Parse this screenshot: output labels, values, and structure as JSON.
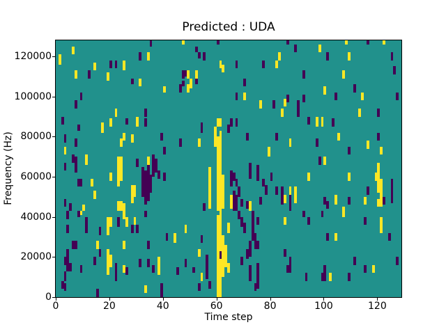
{
  "chart_data": {
    "type": "heatmap",
    "title": "Predicted : UDA",
    "xlabel": "Time step",
    "ylabel": "Frequency (Hz)",
    "x_range": [
      0,
      129
    ],
    "y_range_hz": [
      0,
      128000
    ],
    "x_ticks": [
      0,
      20,
      40,
      60,
      80,
      100,
      120
    ],
    "y_ticks": [
      0,
      20000,
      40000,
      60000,
      80000,
      100000,
      120000
    ],
    "grid": false,
    "legend": "none",
    "colormap": "viridis",
    "colors": {
      "mid_background": "#21918c",
      "low": "#440154",
      "high": "#fde725",
      "spine": "#000000",
      "figure_background": "#ffffff"
    },
    "cell_unit": {
      "time_step": 1,
      "freq_hz_per_bin": 1000
    },
    "cells_format": "[time_step, freq_bin_start, freq_bin_end, color] where color y=high(yellow), p=low(purple); background is mid teal",
    "cells": [
      [
        1,
        116,
        120,
        "y"
      ],
      [
        2,
        86,
        89,
        "p"
      ],
      [
        2,
        4,
        7,
        "p"
      ],
      [
        3,
        77,
        80,
        "p"
      ],
      [
        3,
        71,
        74,
        "y"
      ],
      [
        3,
        63,
        66,
        "p"
      ],
      [
        3,
        45,
        48,
        "p"
      ],
      [
        3,
        16,
        19,
        "p"
      ],
      [
        3,
        8,
        12,
        "p"
      ],
      [
        3,
        3,
        6,
        "p"
      ],
      [
        4,
        39,
        42,
        "p"
      ],
      [
        4,
        32,
        35,
        "p"
      ],
      [
        4,
        13,
        23,
        "p"
      ],
      [
        5,
        43,
        46,
        "p"
      ],
      [
        5,
        13,
        16,
        "p"
      ],
      [
        6,
        121,
        124,
        "y"
      ],
      [
        6,
        67,
        70,
        "p"
      ],
      [
        6,
        24,
        27,
        "p"
      ],
      [
        7,
        109,
        112,
        "y"
      ],
      [
        7,
        94,
        97,
        "p"
      ],
      [
        7,
        75,
        78,
        "p"
      ],
      [
        7,
        62,
        69,
        "p"
      ],
      [
        7,
        24,
        27,
        "p"
      ],
      [
        8,
        83,
        85,
        "p"
      ],
      [
        8,
        55,
        58,
        "p"
      ],
      [
        8,
        40,
        42,
        "p"
      ],
      [
        9,
        98,
        101,
        "p"
      ],
      [
        9,
        55,
        58,
        "p"
      ],
      [
        9,
        41,
        42,
        "y"
      ],
      [
        9,
        12,
        15,
        "p"
      ],
      [
        10,
        43,
        45,
        "y"
      ],
      [
        11,
        66,
        70,
        "y"
      ],
      [
        11,
        35,
        39,
        "p"
      ],
      [
        11,
        32,
        35,
        "p"
      ],
      [
        12,
        109,
        112,
        "p"
      ],
      [
        13,
        55,
        58,
        "y"
      ],
      [
        14,
        113,
        116,
        "y"
      ],
      [
        14,
        49,
        52,
        "y"
      ],
      [
        14,
        16,
        19,
        "p"
      ],
      [
        15,
        24,
        27,
        "y"
      ],
      [
        15,
        0,
        3,
        "p"
      ],
      [
        16,
        31,
        34,
        "p"
      ],
      [
        16,
        20,
        23,
        "p"
      ],
      [
        17,
        82,
        86,
        "y"
      ],
      [
        19,
        108,
        111,
        "y"
      ],
      [
        19,
        31,
        39,
        "y"
      ],
      [
        19,
        11,
        23,
        "y"
      ],
      [
        20,
        114,
        117,
        "p"
      ],
      [
        20,
        85,
        88,
        "y"
      ],
      [
        20,
        58,
        61,
        "y"
      ],
      [
        20,
        35,
        39,
        "y"
      ],
      [
        20,
        15,
        20,
        "y"
      ],
      [
        22,
        114,
        117,
        "p"
      ],
      [
        22,
        90,
        93,
        "y"
      ],
      [
        22,
        8,
        16,
        "p"
      ],
      [
        23,
        55,
        69,
        "y"
      ],
      [
        23,
        43,
        47,
        "y"
      ],
      [
        23,
        35,
        39,
        "p"
      ],
      [
        24,
        58,
        69,
        "y"
      ],
      [
        24,
        75,
        78,
        "y"
      ],
      [
        24,
        43,
        47,
        "y"
      ],
      [
        25,
        113,
        117,
        "y"
      ],
      [
        25,
        78,
        81,
        "y"
      ],
      [
        25,
        43,
        46,
        "y"
      ],
      [
        25,
        39,
        42,
        "y"
      ],
      [
        25,
        24,
        27,
        "y"
      ],
      [
        25,
        12,
        15,
        "y"
      ],
      [
        26,
        86,
        88,
        "p"
      ],
      [
        26,
        35,
        39,
        "y"
      ],
      [
        26,
        11,
        14,
        "p"
      ],
      [
        28,
        106,
        108,
        "p"
      ],
      [
        28,
        77,
        80,
        "y"
      ],
      [
        28,
        47,
        55,
        "y"
      ],
      [
        28,
        32,
        35,
        "p"
      ],
      [
        29,
        50,
        55,
        "y"
      ],
      [
        29,
        36,
        39,
        "y"
      ],
      [
        30,
        85,
        89,
        "y"
      ],
      [
        30,
        65,
        68,
        "p"
      ],
      [
        30,
        32,
        35,
        "p"
      ],
      [
        31,
        118,
        121,
        "p"
      ],
      [
        31,
        105,
        108,
        "y"
      ],
      [
        31,
        15,
        18,
        "p"
      ],
      [
        32,
        50,
        64,
        "p"
      ],
      [
        33,
        90,
        93,
        "p"
      ],
      [
        33,
        85,
        88,
        "p"
      ],
      [
        33,
        46,
        62,
        "p"
      ],
      [
        33,
        40,
        42,
        "p"
      ],
      [
        33,
        2,
        5,
        "y"
      ],
      [
        34,
        118,
        121,
        "y"
      ],
      [
        34,
        66,
        69,
        "y"
      ],
      [
        34,
        48,
        65,
        "p"
      ],
      [
        34,
        24,
        27,
        "p"
      ],
      [
        34,
        15,
        18,
        "p"
      ],
      [
        35,
        125,
        128,
        "p"
      ],
      [
        35,
        52,
        60,
        "p"
      ],
      [
        36,
        60,
        70,
        "p"
      ],
      [
        36,
        12,
        15,
        "p"
      ],
      [
        37,
        62,
        68,
        "p"
      ],
      [
        38,
        59,
        62,
        "p"
      ],
      [
        38,
        11,
        19,
        "y"
      ],
      [
        39,
        78,
        81,
        "p"
      ],
      [
        39,
        0,
        6,
        "p"
      ],
      [
        40,
        102,
        104,
        "y"
      ],
      [
        40,
        71,
        74,
        "p"
      ],
      [
        40,
        58,
        61,
        "p"
      ],
      [
        41,
        28,
        31,
        "p"
      ],
      [
        44,
        27,
        31,
        "y"
      ],
      [
        45,
        11,
        14,
        "p"
      ],
      [
        46,
        102,
        105,
        "p"
      ],
      [
        46,
        75,
        78,
        "p"
      ],
      [
        47,
        126,
        128,
        "y"
      ],
      [
        47,
        109,
        112,
        "p"
      ],
      [
        47,
        105,
        107,
        "p"
      ],
      [
        48,
        110,
        112,
        "p"
      ],
      [
        48,
        32,
        35,
        "y"
      ],
      [
        48,
        15,
        18,
        "p"
      ],
      [
        49,
        109,
        112,
        "y"
      ],
      [
        49,
        102,
        105,
        "y"
      ],
      [
        50,
        104,
        108,
        "y"
      ],
      [
        51,
        12,
        14,
        "p"
      ],
      [
        52,
        122,
        124,
        "p"
      ],
      [
        52,
        109,
        112,
        "y"
      ],
      [
        52,
        106,
        108,
        "p"
      ],
      [
        53,
        119,
        121,
        "p"
      ],
      [
        53,
        75,
        78,
        "y"
      ],
      [
        53,
        20,
        23,
        "y"
      ],
      [
        53,
        3,
        6,
        "p"
      ],
      [
        54,
        82,
        86,
        "p"
      ],
      [
        54,
        27,
        30,
        "p"
      ],
      [
        54,
        8,
        11,
        "y"
      ],
      [
        55,
        118,
        121,
        "p"
      ],
      [
        55,
        43,
        46,
        "p"
      ],
      [
        56,
        9,
        20,
        "p"
      ],
      [
        57,
        44,
        64,
        "y"
      ],
      [
        57,
        4,
        7,
        "p"
      ],
      [
        59,
        75,
        84,
        "y"
      ],
      [
        60,
        126,
        128,
        "p"
      ],
      [
        60,
        85,
        88,
        "y"
      ],
      [
        60,
        43,
        79,
        "y"
      ],
      [
        60,
        0,
        40,
        "y"
      ],
      [
        61,
        114,
        117,
        "y"
      ],
      [
        61,
        85,
        88,
        "y"
      ],
      [
        61,
        43,
        82,
        "y"
      ],
      [
        61,
        23,
        42,
        "y"
      ],
      [
        61,
        19,
        22,
        "p"
      ],
      [
        61,
        0,
        18,
        "y"
      ],
      [
        62,
        112,
        115,
        "y"
      ],
      [
        62,
        44,
        60,
        "y"
      ],
      [
        62,
        10,
        30,
        "y"
      ],
      [
        63,
        15,
        25,
        "y"
      ],
      [
        64,
        82,
        85,
        "p"
      ],
      [
        64,
        32,
        36,
        "y"
      ],
      [
        64,
        12,
        16,
        "y"
      ],
      [
        65,
        85,
        88,
        "p"
      ],
      [
        65,
        55,
        62,
        "p"
      ],
      [
        65,
        44,
        50,
        "y"
      ],
      [
        66,
        58,
        61,
        "p"
      ],
      [
        66,
        43,
        52,
        "p"
      ],
      [
        67,
        114,
        117,
        "p"
      ],
      [
        67,
        98,
        101,
        "p"
      ],
      [
        67,
        85,
        88,
        "p"
      ],
      [
        67,
        55,
        58,
        "p"
      ],
      [
        67,
        43,
        50,
        "p"
      ],
      [
        68,
        50,
        54,
        "p"
      ],
      [
        68,
        39,
        42,
        "p"
      ],
      [
        69,
        45,
        48,
        "p"
      ],
      [
        69,
        35,
        39,
        "p"
      ],
      [
        69,
        16,
        19,
        "p"
      ],
      [
        70,
        105,
        108,
        "p"
      ],
      [
        70,
        98,
        101,
        "y"
      ],
      [
        70,
        32,
        36,
        "p"
      ],
      [
        71,
        78,
        81,
        "p"
      ],
      [
        71,
        44,
        47,
        "p"
      ],
      [
        71,
        19,
        23,
        "p"
      ],
      [
        72,
        59,
        66,
        "p"
      ],
      [
        72,
        43,
        47,
        "y"
      ],
      [
        72,
        20,
        27,
        "p"
      ],
      [
        72,
        12,
        15,
        "p"
      ],
      [
        72,
        8,
        11,
        "p"
      ],
      [
        73,
        39,
        42,
        "p"
      ],
      [
        73,
        36,
        39,
        "p"
      ],
      [
        73,
        28,
        36,
        "p"
      ],
      [
        74,
        24,
        31,
        "p"
      ],
      [
        74,
        3,
        6,
        "p"
      ],
      [
        75,
        58,
        65,
        "p"
      ],
      [
        75,
        36,
        39,
        "p"
      ],
      [
        75,
        24,
        27,
        "p"
      ],
      [
        75,
        8,
        16,
        "p"
      ],
      [
        75,
        4,
        7,
        "p"
      ],
      [
        76,
        94,
        97,
        "y"
      ],
      [
        76,
        46,
        49,
        "p"
      ],
      [
        77,
        114,
        117,
        "p"
      ],
      [
        77,
        55,
        58,
        "p"
      ],
      [
        78,
        51,
        55,
        "p"
      ],
      [
        79,
        70,
        74,
        "y"
      ],
      [
        80,
        58,
        61,
        "p"
      ],
      [
        81,
        94,
        97,
        "p"
      ],
      [
        82,
        114,
        117,
        "y"
      ],
      [
        82,
        78,
        81,
        "p"
      ],
      [
        82,
        51,
        54,
        "p"
      ],
      [
        83,
        118,
        121,
        "y"
      ],
      [
        84,
        90,
        93,
        "y"
      ],
      [
        84,
        46,
        54,
        "p"
      ],
      [
        85,
        95,
        98,
        "y"
      ],
      [
        85,
        47,
        50,
        "y"
      ],
      [
        85,
        36,
        39,
        "y"
      ],
      [
        85,
        20,
        23,
        "p"
      ],
      [
        86,
        126,
        128,
        "p"
      ],
      [
        86,
        97,
        100,
        "p"
      ],
      [
        86,
        12,
        15,
        "p"
      ],
      [
        87,
        75,
        78,
        "y"
      ],
      [
        87,
        51,
        54,
        "y"
      ],
      [
        87,
        43,
        50,
        "p"
      ],
      [
        87,
        15,
        19,
        "p"
      ],
      [
        87,
        12,
        15,
        "p"
      ],
      [
        89,
        122,
        125,
        "p"
      ],
      [
        89,
        47,
        54,
        "y"
      ],
      [
        90,
        90,
        97,
        "p"
      ],
      [
        92,
        109,
        112,
        "p"
      ],
      [
        92,
        97,
        100,
        "p"
      ],
      [
        92,
        40,
        42,
        "p"
      ],
      [
        93,
        8,
        11,
        "p"
      ],
      [
        94,
        86,
        89,
        "p"
      ],
      [
        94,
        58,
        61,
        "y"
      ],
      [
        94,
        36,
        39,
        "p"
      ],
      [
        97,
        85,
        89,
        "y"
      ],
      [
        97,
        75,
        78,
        "p"
      ],
      [
        98,
        122,
        125,
        "y"
      ],
      [
        98,
        66,
        69,
        "p"
      ],
      [
        99,
        85,
        89,
        "y"
      ],
      [
        99,
        40,
        42,
        "p"
      ],
      [
        99,
        8,
        11,
        "p"
      ],
      [
        100,
        101,
        104,
        "y"
      ],
      [
        100,
        66,
        69,
        "y"
      ],
      [
        100,
        46,
        49,
        "p"
      ],
      [
        100,
        12,
        15,
        "p"
      ],
      [
        100,
        8,
        11,
        "p"
      ],
      [
        101,
        118,
        121,
        "p"
      ],
      [
        101,
        44,
        47,
        "p"
      ],
      [
        101,
        28,
        31,
        "p"
      ],
      [
        102,
        8,
        11,
        "y"
      ],
      [
        103,
        85,
        88,
        "p"
      ],
      [
        104,
        98,
        101,
        "p"
      ],
      [
        104,
        46,
        50,
        "y"
      ],
      [
        104,
        28,
        31,
        "y"
      ],
      [
        105,
        78,
        81,
        "y"
      ],
      [
        107,
        109,
        112,
        "y"
      ],
      [
        107,
        43,
        44,
        "y"
      ],
      [
        107,
        40,
        42,
        "y"
      ],
      [
        108,
        126,
        128,
        "y"
      ],
      [
        109,
        118,
        121,
        "y"
      ],
      [
        109,
        71,
        74,
        "p"
      ],
      [
        109,
        58,
        61,
        "y"
      ],
      [
        109,
        46,
        49,
        "p"
      ],
      [
        109,
        8,
        11,
        "p"
      ],
      [
        111,
        102,
        105,
        "p"
      ],
      [
        111,
        16,
        19,
        "p"
      ],
      [
        113,
        90,
        93,
        "y"
      ],
      [
        114,
        98,
        101,
        "y"
      ],
      [
        115,
        46,
        49,
        "y"
      ],
      [
        115,
        36,
        39,
        "p"
      ],
      [
        115,
        12,
        15,
        "p"
      ],
      [
        116,
        126,
        128,
        "p"
      ],
      [
        116,
        74,
        77,
        "y"
      ],
      [
        116,
        51,
        54,
        "p"
      ],
      [
        118,
        12,
        15,
        "y"
      ],
      [
        119,
        58,
        61,
        "y"
      ],
      [
        120,
        90,
        93,
        "p"
      ],
      [
        120,
        78,
        81,
        "p"
      ],
      [
        120,
        52,
        66,
        "y"
      ],
      [
        120,
        45,
        48,
        "y"
      ],
      [
        121,
        71,
        74,
        "y"
      ],
      [
        121,
        45,
        58,
        "y"
      ],
      [
        121,
        32,
        39,
        "y"
      ],
      [
        122,
        126,
        128,
        "y"
      ],
      [
        122,
        46,
        49,
        "p"
      ],
      [
        124,
        28,
        31,
        "p"
      ],
      [
        125,
        118,
        121,
        "p"
      ],
      [
        125,
        55,
        58,
        "p"
      ],
      [
        125,
        47,
        54,
        "p"
      ],
      [
        126,
        111,
        114,
        "p"
      ],
      [
        127,
        98,
        101,
        "p"
      ],
      [
        127,
        16,
        19,
        "p"
      ]
    ]
  }
}
